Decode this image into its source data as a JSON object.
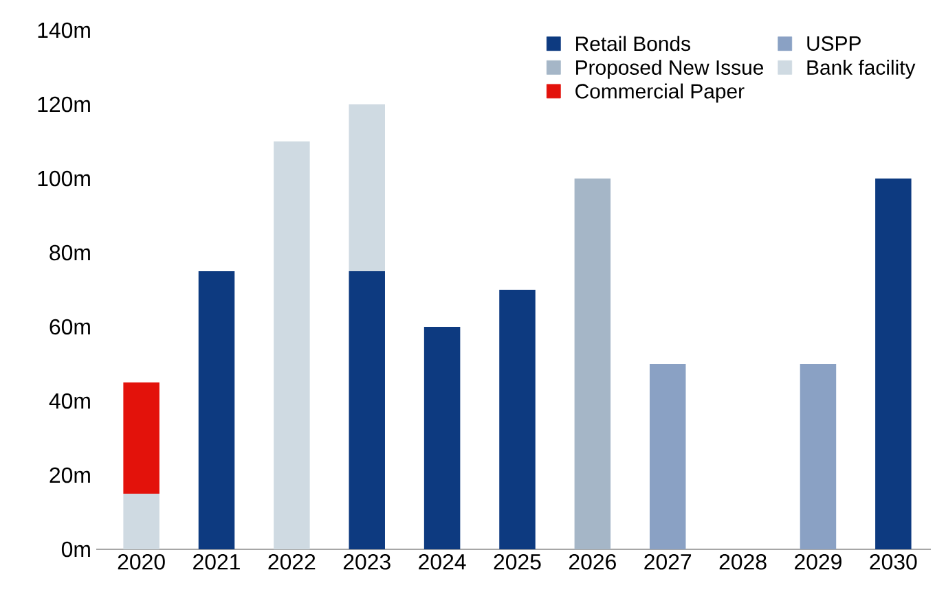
{
  "chart_data": {
    "type": "bar",
    "stacked": true,
    "categories": [
      "2020",
      "2021",
      "2022",
      "2023",
      "2024",
      "2025",
      "2026",
      "2027",
      "2028",
      "2029",
      "2030"
    ],
    "series": [
      {
        "name": "Retail Bonds",
        "color": "#0d3a80",
        "values": [
          null,
          75,
          null,
          75,
          60,
          70,
          null,
          null,
          null,
          null,
          100
        ]
      },
      {
        "name": "USPP",
        "color": "#8aa1c4",
        "values": [
          null,
          null,
          null,
          null,
          null,
          null,
          null,
          50,
          null,
          50,
          null
        ]
      },
      {
        "name": "Proposed New Issue",
        "color": "#a5b6c7",
        "values": [
          null,
          null,
          null,
          null,
          null,
          null,
          100,
          null,
          null,
          null,
          null
        ]
      },
      {
        "name": "Bank facility",
        "color": "#cfdae2",
        "values": [
          15,
          null,
          110,
          45,
          null,
          null,
          null,
          null,
          null,
          null,
          null
        ]
      },
      {
        "name": "Commercial Paper",
        "color": "#e3120b",
        "values": [
          30,
          null,
          null,
          null,
          null,
          null,
          null,
          null,
          null,
          null,
          null
        ]
      }
    ],
    "ylim": [
      0,
      140
    ],
    "yticks": [
      {
        "value": 0,
        "label": "0m"
      },
      {
        "value": 20,
        "label": "20m"
      },
      {
        "value": 40,
        "label": "40m"
      },
      {
        "value": 60,
        "label": "60m"
      },
      {
        "value": 80,
        "label": "80m"
      },
      {
        "value": 100,
        "label": "100m"
      },
      {
        "value": 120,
        "label": "120m"
      },
      {
        "value": 140,
        "label": "140m"
      }
    ],
    "grid": false,
    "legend": "top right"
  }
}
